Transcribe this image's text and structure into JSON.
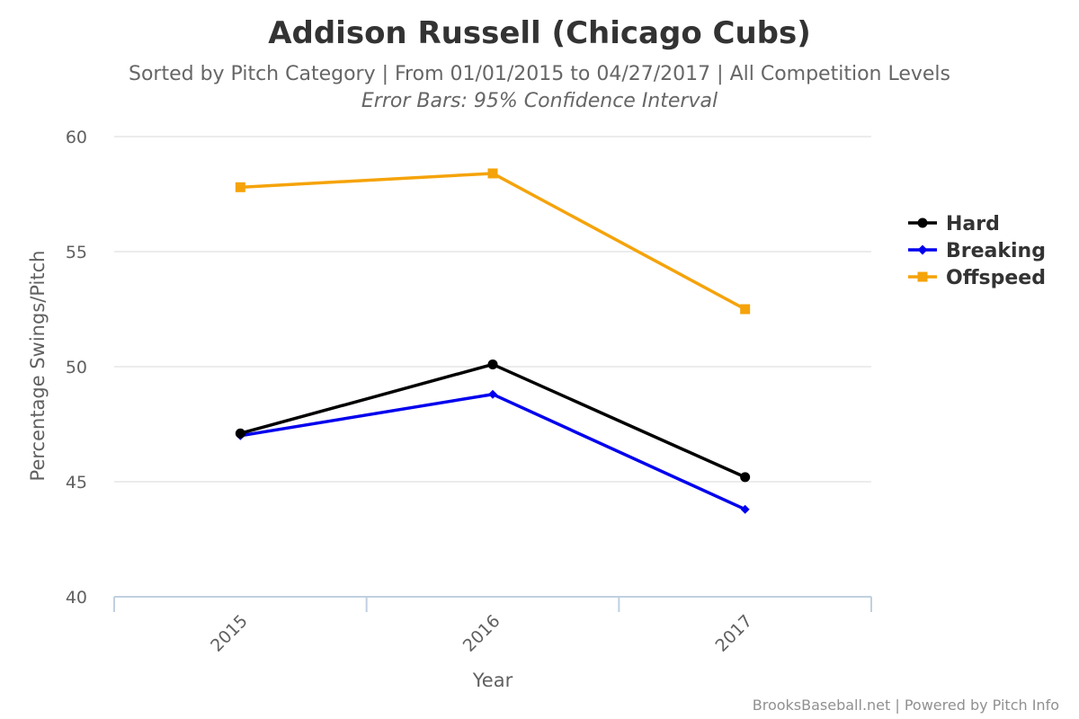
{
  "chart_data": {
    "type": "line",
    "title": "Addison Russell (Chicago Cubs)",
    "subtitle": "Sorted by Pitch Category | From 01/01/2015 to 04/27/2017 | All Competition Levels",
    "subtitle2": "Error Bars: 95% Confidence Interval",
    "xlabel": "Year",
    "ylabel": "Percentage Swings/Pitch",
    "categories": [
      "2015",
      "2016",
      "2017"
    ],
    "ylim": [
      40,
      60
    ],
    "yticks": [
      40,
      45,
      50,
      55,
      60
    ],
    "grid": true,
    "legend_position": "right",
    "series": [
      {
        "name": "Hard",
        "color": "#000000",
        "marker": "circle",
        "values": [
          47.1,
          50.1,
          45.2
        ]
      },
      {
        "name": "Breaking",
        "color": "#0000ee",
        "marker": "diamond",
        "values": [
          47.0,
          48.8,
          43.8
        ]
      },
      {
        "name": "Offspeed",
        "color": "#f5a30a",
        "marker": "square",
        "values": [
          57.8,
          58.4,
          52.5
        ]
      }
    ],
    "credits": "BrooksBaseball.net | Powered by Pitch Info"
  }
}
